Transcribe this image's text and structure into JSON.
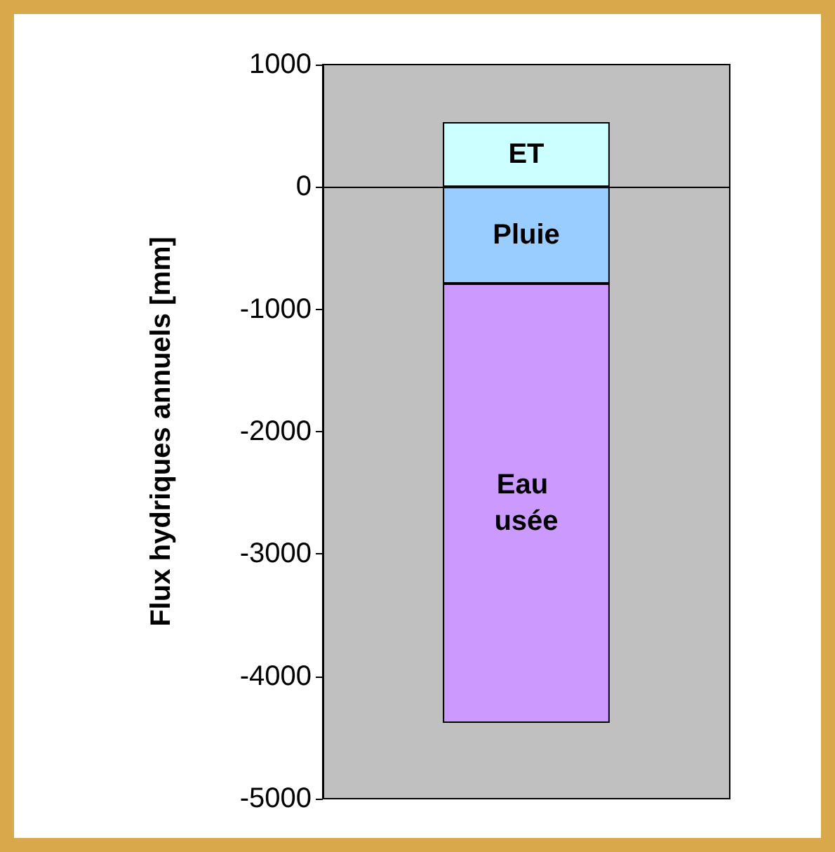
{
  "chart_data": {
    "type": "bar",
    "ylabel": "Flux hydriques annuels [mm]",
    "categories": [
      null
    ],
    "stacked": true,
    "ylim": [
      -5000,
      1000
    ],
    "yticks": [
      -5000,
      -4000,
      -3000,
      -2000,
      -1000,
      0,
      1000
    ],
    "legend": false,
    "series": [
      {
        "name": "ET",
        "color": "#ccffff",
        "values": [
          530
        ]
      },
      {
        "name": "Pluie",
        "color": "#99ccff",
        "values": [
          -790
        ]
      },
      {
        "name": "Eau usée",
        "color": "#cc99ff",
        "values": [
          -3590
        ]
      }
    ]
  }
}
